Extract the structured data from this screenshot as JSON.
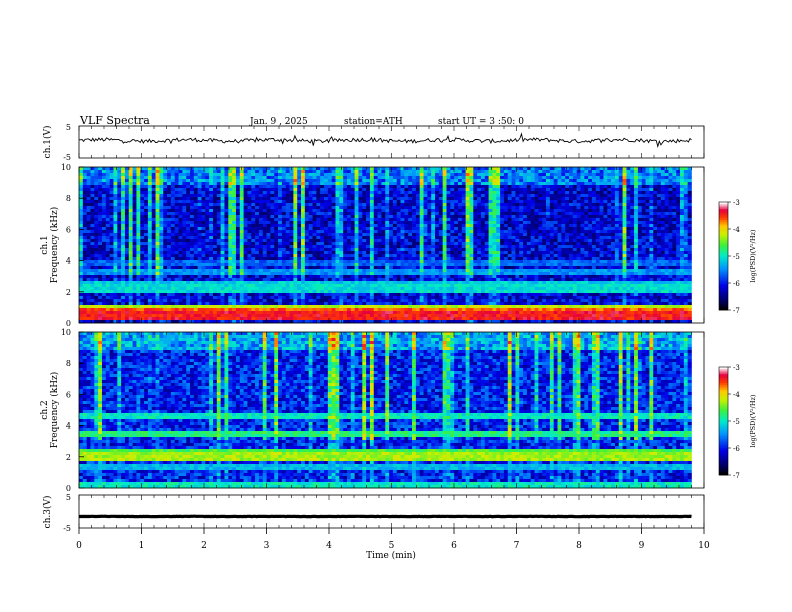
{
  "header": {
    "title": "VLF Spectra",
    "date": "Jan. 9 , 2025",
    "station": "station=ATH",
    "start": "start UT = 3 :50: 0"
  },
  "chart_data": [
    {
      "id": "ch1-voltage",
      "type": "line",
      "ylabel": "ch.1(V)",
      "ylim": [
        -5,
        5
      ],
      "yticks": [
        "5",
        "-5"
      ],
      "xlim": [
        0,
        10
      ],
      "series": [
        {
          "baseline": 0.5,
          "noise_amplitude": 0.6,
          "spike_amplitude": 1.5,
          "x_end": 9.8
        }
      ]
    },
    {
      "id": "ch1-spectrogram",
      "type": "heatmap",
      "ylabel": "ch.1\nFrequency (kHz)",
      "ylabel_lines": [
        "ch.1",
        "Frequency (kHz)"
      ],
      "ylim": [
        0,
        10
      ],
      "yticks": [
        "0",
        "2",
        "4",
        "6",
        "8",
        "10"
      ],
      "xlim": [
        0,
        10
      ],
      "x_end": 9.8,
      "colorbar": {
        "label": "log(PSD)(V²/Hz)",
        "ticks": [
          "-3",
          "-4",
          "-5",
          "-6",
          "-7"
        ],
        "range": [
          -7,
          -3
        ]
      },
      "bands": [
        {
          "f": 0.5,
          "level": -3.4
        },
        {
          "f": 0.7,
          "level": -3.6
        },
        {
          "f": 0.95,
          "level": -4.2
        },
        {
          "f": 1.6,
          "level": -6.6
        },
        {
          "f": 2.2,
          "level": -5.1
        },
        {
          "f": 2.5,
          "level": -5.2
        },
        {
          "f": 3.3,
          "level": -5.5
        },
        {
          "f": 3.9,
          "level": -5.7
        }
      ],
      "baseline_level": -6.2
    },
    {
      "id": "ch2-spectrogram",
      "type": "heatmap",
      "ylabel_lines": [
        "ch.2",
        "Frequency (kHz)"
      ],
      "ylim": [
        0,
        10
      ],
      "yticks": [
        "0",
        "2",
        "4",
        "6",
        "8",
        "10"
      ],
      "xlim": [
        0,
        10
      ],
      "x_end": 9.8,
      "colorbar": {
        "label": "log(PSD)(V²/Hz)",
        "ticks": [
          "-3",
          "-4",
          "-5",
          "-6",
          "-7"
        ],
        "range": [
          -7,
          -3
        ]
      },
      "bands": [
        {
          "f": 0.2,
          "level": -5.0
        },
        {
          "f": 2.0,
          "level": -4.3
        },
        {
          "f": 2.2,
          "level": -4.6
        },
        {
          "f": 3.5,
          "level": -4.8
        },
        {
          "f": 4.6,
          "level": -5.0
        },
        {
          "f": 1.3,
          "level": -5.3
        }
      ],
      "baseline_level": -6.0
    },
    {
      "id": "ch3-voltage",
      "type": "line",
      "ylabel": "ch.3(V)",
      "ylim": [
        -5,
        5
      ],
      "yticks": [
        "5",
        "-5"
      ],
      "xlim": [
        0,
        10
      ],
      "xlabel": "Time (min)",
      "xticks": [
        "0",
        "1",
        "2",
        "3",
        "4",
        "5",
        "6",
        "7",
        "8",
        "9",
        "10"
      ],
      "series": [
        {
          "baseline": -1.5,
          "noise_amplitude": 0.05,
          "x_end": 9.8
        }
      ]
    }
  ]
}
